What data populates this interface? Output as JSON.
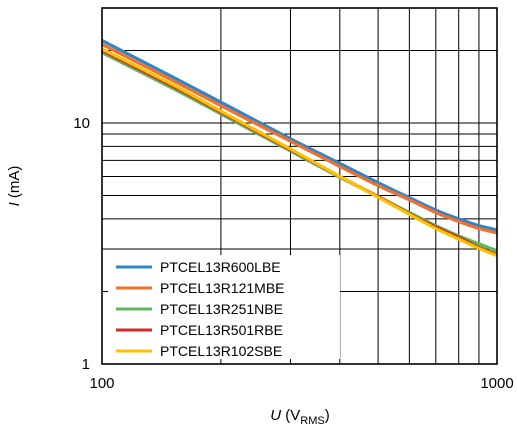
{
  "chart_data": {
    "type": "line",
    "x_scale": "log",
    "y_scale": "log",
    "xlim": [
      100,
      1000
    ],
    "ylim": [
      1,
      30
    ],
    "x_ticks": [
      {
        "value": 100,
        "label": "100"
      },
      {
        "value": 1000,
        "label": "1000"
      }
    ],
    "y_ticks": [
      {
        "value": 1,
        "label": "1"
      },
      {
        "value": 10,
        "label": "10"
      }
    ],
    "xlabel": {
      "symbol": "U",
      "unit_open": " (V",
      "unit_sub": "RMS",
      "unit_close": ")"
    },
    "ylabel": {
      "symbol": "I",
      "unit": " (mA)"
    },
    "grid": true,
    "legend_position": "bottom-left",
    "series": [
      {
        "name": "PTCEL13R600LBE",
        "color": "#2E86C8",
        "x": [
          100,
          150,
          200,
          300,
          400,
          500,
          600,
          700,
          800,
          900,
          1000
        ],
        "y": [
          22.0,
          15.6,
          12.2,
          8.6,
          6.8,
          5.65,
          4.9,
          4.35,
          4.0,
          3.75,
          3.6
        ]
      },
      {
        "name": "PTCEL13R121MBE",
        "color": "#F07030",
        "x": [
          100,
          150,
          200,
          300,
          400,
          500,
          600,
          700,
          800,
          900,
          1000
        ],
        "y": [
          21.2,
          15.1,
          11.8,
          8.4,
          6.6,
          5.5,
          4.8,
          4.25,
          3.9,
          3.65,
          3.5
        ]
      },
      {
        "name": "PTCEL13R251NBE",
        "color": "#5CB85C",
        "x": [
          100,
          150,
          200,
          300,
          400,
          500,
          600,
          700,
          800,
          900,
          1000
        ],
        "y": [
          19.6,
          14.0,
          10.9,
          7.65,
          5.95,
          4.95,
          4.25,
          3.75,
          3.4,
          3.15,
          2.95
        ]
      },
      {
        "name": "PTCEL13R501RBE",
        "color": "#D62728",
        "x": [
          100,
          150,
          200,
          300,
          400,
          500,
          600,
          700,
          800,
          900,
          1000
        ],
        "y": [
          20.0,
          14.3,
          11.1,
          7.75,
          6.0,
          4.95,
          4.2,
          3.7,
          3.35,
          3.05,
          2.85
        ]
      },
      {
        "name": "PTCEL13R102SBE",
        "color": "#FFC000",
        "x": [
          100,
          150,
          200,
          300,
          400,
          500,
          600,
          700,
          800,
          900,
          1000
        ],
        "y": [
          20.3,
          14.5,
          11.2,
          7.8,
          6.0,
          4.92,
          4.18,
          3.65,
          3.3,
          3.02,
          2.82
        ]
      }
    ]
  }
}
